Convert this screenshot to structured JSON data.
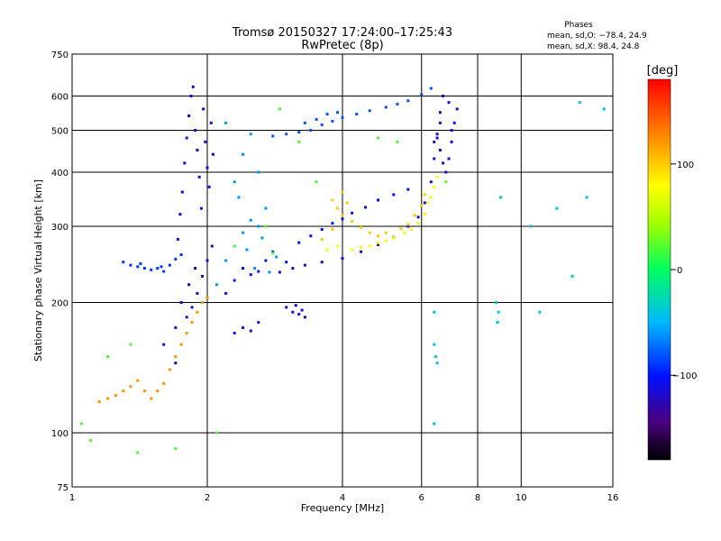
{
  "chart_data": {
    "type": "scatter",
    "title": "Tromsø 20150327 17:24:00–17:25:43",
    "subtitle": "RwPretec (8p)",
    "xlabel": "Frequency [MHz]",
    "ylabel": "Stationary phase Virtual Height [km]",
    "x_scale": "log",
    "y_scale": "log",
    "xlim": [
      1,
      16
    ],
    "ylim": [
      75,
      750
    ],
    "x_ticks": [
      1,
      2,
      4,
      6,
      8,
      10,
      16
    ],
    "y_ticks": [
      75,
      100,
      200,
      300,
      400,
      500,
      600,
      750
    ],
    "x_grid": [
      2,
      4,
      6,
      8,
      10
    ],
    "y_grid": [
      100,
      200,
      300,
      400,
      500,
      600
    ],
    "stats": {
      "header": "Phases",
      "line_o": "mean, sd,O: −78.4, 24.9",
      "line_x": "mean, sd,X:  98.4, 24.8"
    },
    "colorbar": {
      "label": "[deg]",
      "range": [
        -180,
        180
      ],
      "ticks": [
        100,
        0,
        -100
      ]
    },
    "series": [
      {
        "points": [
          [
            1.72,
            280
          ],
          [
            1.74,
            320
          ],
          [
            1.76,
            360
          ],
          [
            1.78,
            420
          ],
          [
            1.8,
            480
          ],
          [
            1.82,
            540
          ],
          [
            1.84,
            600
          ],
          [
            1.86,
            630
          ],
          [
            1.88,
            500
          ],
          [
            1.9,
            450
          ],
          [
            1.92,
            390
          ],
          [
            1.94,
            330
          ],
          [
            1.96,
            560
          ],
          [
            1.98,
            470
          ],
          [
            2.0,
            410
          ],
          [
            2.02,
            370
          ],
          [
            2.04,
            520
          ],
          [
            2.06,
            440
          ]
        ],
        "phase": -110
      },
      {
        "points": [
          [
            2.2,
            210
          ],
          [
            2.3,
            225
          ],
          [
            2.4,
            240
          ],
          [
            2.5,
            232
          ],
          [
            2.6,
            236
          ],
          [
            2.7,
            250
          ],
          [
            2.8,
            262
          ],
          [
            3.0,
            248
          ],
          [
            3.2,
            275
          ],
          [
            3.4,
            285
          ],
          [
            3.6,
            295
          ],
          [
            3.8,
            305
          ],
          [
            4.0,
            312
          ],
          [
            4.2,
            322
          ],
          [
            4.5,
            332
          ],
          [
            4.8,
            345
          ],
          [
            5.2,
            355
          ],
          [
            5.6,
            365
          ]
        ],
        "phase": -100
      },
      {
        "points": [
          [
            2.1,
            220
          ],
          [
            2.2,
            250
          ],
          [
            2.3,
            270
          ],
          [
            2.4,
            290
          ],
          [
            2.5,
            310
          ],
          [
            2.6,
            300
          ],
          [
            2.7,
            330
          ],
          [
            2.3,
            380
          ],
          [
            2.4,
            440
          ],
          [
            2.5,
            490
          ],
          [
            2.6,
            400
          ],
          [
            2.2,
            520
          ],
          [
            2.35,
            350
          ],
          [
            2.45,
            265
          ],
          [
            2.55,
            240
          ],
          [
            2.65,
            282
          ],
          [
            2.75,
            235
          ],
          [
            2.85,
            255
          ]
        ],
        "phase": -60
      },
      {
        "points": [
          [
            2.9,
            235
          ],
          [
            3.1,
            240
          ],
          [
            3.3,
            244
          ],
          [
            3.6,
            248
          ],
          [
            4.0,
            253
          ],
          [
            4.4,
            262
          ],
          [
            4.8,
            272
          ],
          [
            5.2,
            283
          ],
          [
            5.6,
            300
          ],
          [
            5.9,
            315
          ],
          [
            6.1,
            340
          ],
          [
            6.3,
            380
          ],
          [
            6.4,
            430
          ],
          [
            6.5,
            490
          ],
          [
            6.6,
            550
          ],
          [
            6.7,
            600
          ],
          [
            6.4,
            470
          ],
          [
            6.6,
            520
          ]
        ],
        "phase": -120
      },
      {
        "points": [
          [
            3.6,
            280
          ],
          [
            3.8,
            295
          ],
          [
            4.0,
            318
          ],
          [
            4.1,
            340
          ],
          [
            4.2,
            308
          ],
          [
            4.4,
            298
          ],
          [
            4.6,
            290
          ],
          [
            4.8,
            285
          ],
          [
            5.0,
            290
          ],
          [
            5.2,
            283
          ],
          [
            5.4,
            296
          ],
          [
            5.6,
            303
          ],
          [
            5.8,
            318
          ],
          [
            6.0,
            335
          ],
          [
            6.1,
            355
          ],
          [
            3.9,
            330
          ],
          [
            4.0,
            360
          ],
          [
            3.8,
            345
          ]
        ],
        "phase": 100
      },
      {
        "points": [
          [
            4.6,
            270
          ],
          [
            4.8,
            275
          ],
          [
            5.0,
            278
          ],
          [
            5.2,
            282
          ],
          [
            5.5,
            290
          ],
          [
            5.7,
            295
          ],
          [
            5.9,
            305
          ],
          [
            6.1,
            320
          ],
          [
            6.3,
            350
          ],
          [
            6.5,
            390
          ],
          [
            4.2,
            265
          ],
          [
            4.4,
            268
          ],
          [
            3.7,
            265
          ],
          [
            3.9,
            270
          ],
          [
            6.2,
            340
          ],
          [
            6.4,
            370
          ]
        ],
        "phase": 75
      },
      {
        "points": [
          [
            2.8,
            485
          ],
          [
            3.0,
            490
          ],
          [
            3.2,
            495
          ],
          [
            3.4,
            500
          ],
          [
            3.6,
            515
          ],
          [
            3.8,
            525
          ],
          [
            4.0,
            535
          ],
          [
            4.3,
            545
          ],
          [
            4.6,
            555
          ],
          [
            5.0,
            565
          ],
          [
            5.3,
            575
          ],
          [
            5.6,
            585
          ],
          [
            6.0,
            605
          ],
          [
            6.3,
            625
          ],
          [
            3.3,
            520
          ],
          [
            3.5,
            530
          ],
          [
            3.7,
            545
          ],
          [
            3.9,
            550
          ]
        ],
        "phase": -80
      },
      {
        "points": [
          [
            1.3,
            248
          ],
          [
            1.35,
            244
          ],
          [
            1.4,
            242
          ],
          [
            1.45,
            240
          ],
          [
            1.5,
            238
          ],
          [
            1.55,
            240
          ],
          [
            1.6,
            236
          ],
          [
            1.65,
            244
          ],
          [
            1.7,
            252
          ],
          [
            1.75,
            258
          ],
          [
            1.42,
            246
          ],
          [
            1.58,
            242
          ]
        ],
        "phase": -90
      },
      {
        "points": [
          [
            1.15,
            118
          ],
          [
            1.2,
            120
          ],
          [
            1.25,
            122
          ],
          [
            1.3,
            125
          ],
          [
            1.35,
            128
          ],
          [
            1.4,
            132
          ],
          [
            1.45,
            125
          ],
          [
            1.5,
            120
          ],
          [
            1.55,
            125
          ],
          [
            1.6,
            130
          ],
          [
            1.65,
            140
          ],
          [
            1.7,
            150
          ],
          [
            1.75,
            160
          ],
          [
            1.8,
            170
          ],
          [
            1.85,
            180
          ],
          [
            1.9,
            190
          ],
          [
            1.95,
            200
          ],
          [
            2.0,
            205
          ]
        ],
        "phase": 120
      },
      {
        "points": [
          [
            1.6,
            160
          ],
          [
            1.7,
            175
          ],
          [
            1.8,
            185
          ],
          [
            1.85,
            195
          ],
          [
            1.9,
            210
          ],
          [
            1.95,
            230
          ],
          [
            2.0,
            250
          ],
          [
            2.05,
            270
          ],
          [
            1.75,
            200
          ],
          [
            1.82,
            220
          ],
          [
            1.88,
            240
          ],
          [
            1.7,
            145
          ]
        ],
        "phase": -120
      },
      {
        "points": [
          [
            3.0,
            195
          ],
          [
            3.1,
            190
          ],
          [
            3.2,
            188
          ],
          [
            3.3,
            185
          ],
          [
            3.25,
            192
          ],
          [
            3.15,
            197
          ],
          [
            2.3,
            170
          ],
          [
            2.4,
            175
          ],
          [
            2.5,
            172
          ],
          [
            2.6,
            180
          ]
        ],
        "phase": -110
      },
      {
        "points": [
          [
            6.5,
            480
          ],
          [
            6.6,
            450
          ],
          [
            6.7,
            420
          ],
          [
            6.8,
            400
          ],
          [
            6.9,
            430
          ],
          [
            7.0,
            470
          ],
          [
            7.1,
            520
          ],
          [
            7.2,
            560
          ],
          [
            7.0,
            500
          ],
          [
            6.9,
            580
          ]
        ],
        "phase": -110
      },
      {
        "points": [
          [
            6.4,
            190
          ],
          [
            6.4,
            160
          ],
          [
            6.45,
            150
          ],
          [
            6.5,
            145
          ],
          [
            6.4,
            105
          ],
          [
            8.8,
            200
          ],
          [
            8.9,
            190
          ],
          [
            8.85,
            180
          ],
          [
            11,
            190
          ],
          [
            13,
            230
          ],
          [
            12,
            330
          ],
          [
            14,
            350
          ],
          [
            9,
            350
          ],
          [
            10.5,
            300
          ],
          [
            13.5,
            580
          ],
          [
            15.3,
            560
          ]
        ],
        "phase": -40
      },
      {
        "points": [
          [
            1.05,
            105
          ],
          [
            1.1,
            96
          ],
          [
            1.4,
            90
          ],
          [
            1.7,
            92
          ],
          [
            2.1,
            100
          ],
          [
            1.2,
            150
          ],
          [
            1.35,
            160
          ],
          [
            2.3,
            270
          ],
          [
            2.8,
            260
          ],
          [
            2.9,
            560
          ],
          [
            3.2,
            470
          ],
          [
            2.7,
            300
          ],
          [
            3.5,
            380
          ],
          [
            4.8,
            480
          ],
          [
            5.3,
            470
          ],
          [
            6.8,
            380
          ]
        ],
        "phase": 20
      }
    ]
  }
}
